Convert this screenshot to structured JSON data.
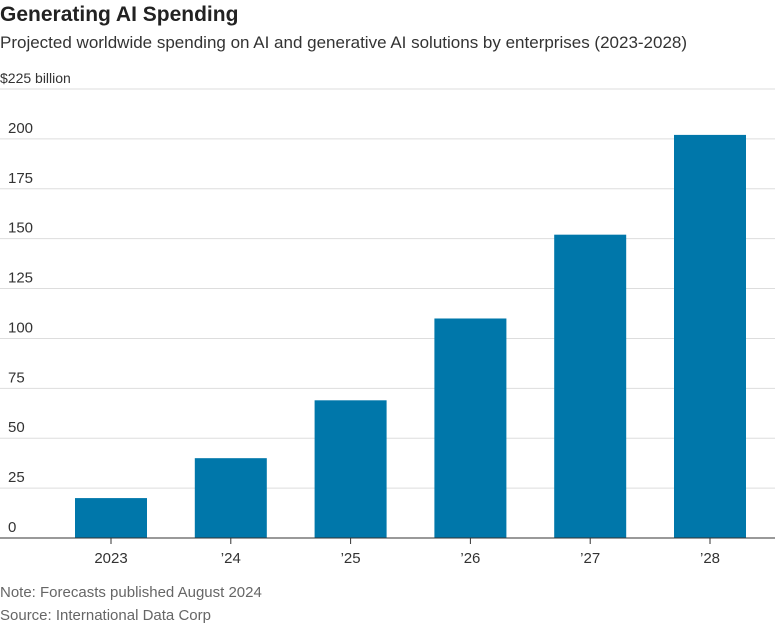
{
  "chart_data": {
    "type": "bar",
    "title": "Generating AI Spending",
    "subtitle": "Projected worldwide spending on AI and generative AI solutions by enterprises (2023-2028)",
    "ylabel": "$225 billion",
    "categories": [
      "2023",
      "’24",
      "’25",
      "’26",
      "’27",
      "’28"
    ],
    "values": [
      20,
      40,
      69,
      110,
      152,
      202
    ],
    "ylim": [
      0,
      225
    ],
    "yticks": [
      0,
      25,
      50,
      75,
      100,
      125,
      150,
      175,
      200
    ],
    "top_tick_label": "$225 billion",
    "grid": true,
    "legend": "none",
    "bar_color": "#0077AA",
    "note": "Note: Forecasts published August 2024",
    "source": "Source: International Data Corp"
  }
}
